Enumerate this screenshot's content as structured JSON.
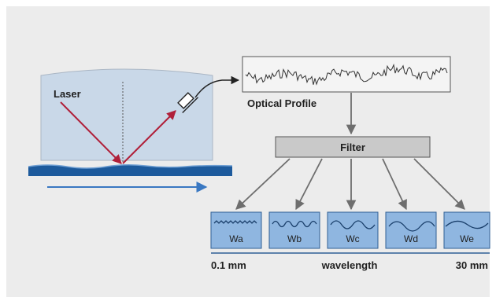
{
  "labels": {
    "laser": "Laser",
    "optical_profile": "Optical Profile",
    "filter": "Filter",
    "wavelength_min": "0.1 mm",
    "wavelength_axis": "wavelength",
    "wavelength_max": "30 mm"
  },
  "filter_outputs": [
    {
      "label": "Wa",
      "wave": "very-short-wave-icon"
    },
    {
      "label": "Wb",
      "wave": "short-wave-icon"
    },
    {
      "label": "Wc",
      "wave": "medium-wave-icon"
    },
    {
      "label": "Wd",
      "wave": "long-wave-icon"
    },
    {
      "label": "We",
      "wave": "very-long-wave-icon"
    }
  ],
  "colors": {
    "background": "#ececec",
    "chamber_fill": "#c9d8e8",
    "surface": "#1d5a9c",
    "laser_beam": "#b0203a",
    "filter_box": "#c9c9c9",
    "output_box": "#8fb6e0",
    "arrow": "#6e6e6e"
  }
}
